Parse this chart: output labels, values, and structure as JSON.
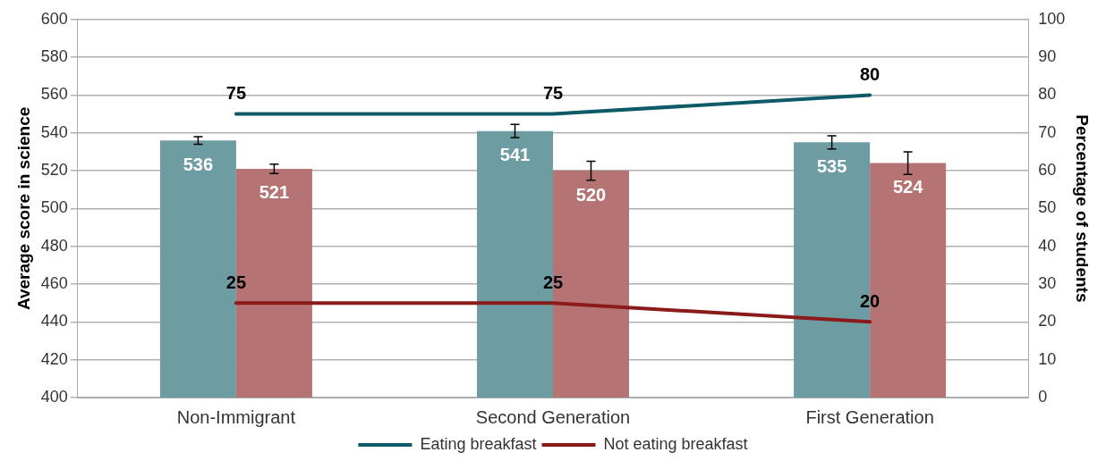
{
  "chart_data": {
    "type": "bar",
    "ylabel": "Average score in science",
    "y2label": "Percentage of students",
    "categories": [
      "Non-Immigrant",
      "Second Generation",
      "First Generation"
    ],
    "series": [
      {
        "color": "#6e9ca3",
        "values": [
          536,
          541,
          535
        ],
        "errors": [
          2,
          3.5,
          3.5
        ]
      },
      {
        "color": "#b57473",
        "values": [
          521,
          520,
          524
        ],
        "errors": [
          2.5,
          5,
          6
        ]
      },
      {
        "type": "line",
        "name": "Eating breakfast",
        "color": "#0e5a66",
        "axis": "y2",
        "values": [
          75,
          75,
          80
        ]
      },
      {
        "type": "line",
        "name": "Not eating breakfast",
        "color": "#8b1a1a",
        "axis": "y2",
        "values": [
          25,
          25,
          20
        ]
      }
    ],
    "ylim": [
      400,
      600
    ],
    "yticks": [
      400,
      420,
      440,
      460,
      480,
      500,
      520,
      540,
      560,
      580,
      600
    ],
    "y2lim": [
      0,
      100
    ],
    "y2ticks": [
      0,
      10,
      20,
      30,
      40,
      50,
      60,
      70,
      80,
      90,
      100
    ],
    "grid": "y",
    "legend": "bottom",
    "data_labels": true,
    "marker": "none",
    "line_style": "solid"
  }
}
